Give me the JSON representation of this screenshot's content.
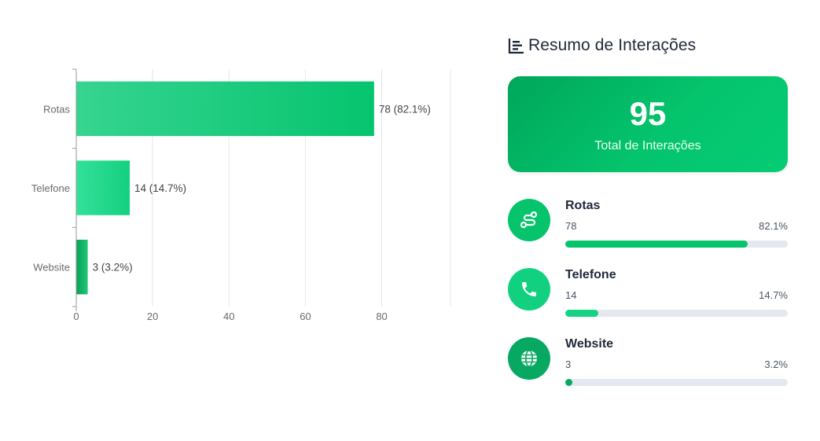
{
  "chart_data": {
    "type": "bar",
    "orientation": "horizontal",
    "categories": [
      "Rotas",
      "Telefone",
      "Website"
    ],
    "values": [
      78,
      14,
      3
    ],
    "data_labels": [
      "78 (82.1%)",
      "14 (14.7%)",
      "3 (3.2%)"
    ],
    "xlim": [
      0,
      98
    ],
    "xticks": [
      0,
      20,
      40,
      60,
      80
    ],
    "grid": "vertical",
    "title": "",
    "xlabel": "",
    "ylabel": "",
    "colors": [
      "#06c46e",
      "#14d07f",
      "#0c9f58"
    ]
  },
  "summary": {
    "title": "Resumo de Interações",
    "title_icon": "bar-chart-icon",
    "total": {
      "value": "95",
      "label": "Total de Interações"
    },
    "items": [
      {
        "name": "Rotas",
        "count": "78",
        "percent": "82.1%",
        "fraction": 0.821,
        "icon": "route-icon",
        "color": "#07c46c",
        "avatar_color": "#05c46c"
      },
      {
        "name": "Telefone",
        "count": "14",
        "percent": "14.7%",
        "fraction": 0.147,
        "icon": "phone-icon",
        "color": "#16d384",
        "avatar_color": "#11d181"
      },
      {
        "name": "Website",
        "count": "3",
        "percent": "3.2%",
        "fraction": 0.032,
        "icon": "globe-icon",
        "color": "#07a862",
        "avatar_color": "#07a862"
      }
    ]
  }
}
